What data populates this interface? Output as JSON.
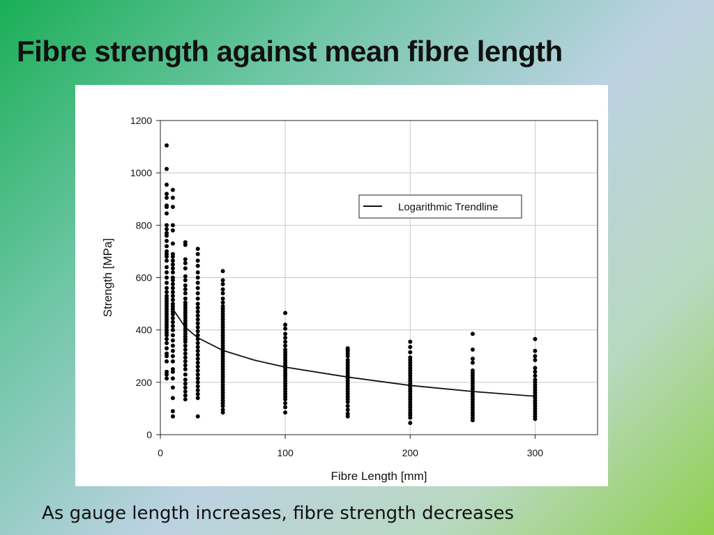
{
  "slide": {
    "title": "Fibre strength against mean fibre length",
    "caption": "As gauge length increases, fibre strength decreases"
  },
  "chart_data": {
    "type": "scatter",
    "xlabel": "Fibre Length [mm]",
    "ylabel": "Strength [MPa]",
    "xlim": [
      0,
      350
    ],
    "ylim": [
      0,
      1200
    ],
    "x_ticks": [
      0,
      100,
      200,
      300
    ],
    "y_ticks": [
      0,
      200,
      400,
      600,
      800,
      1000,
      1200
    ],
    "grid": true,
    "legend": {
      "placement": "upper-right",
      "entries": [
        "Logarithmic Trendline"
      ]
    },
    "trendline": {
      "type": "logarithmic",
      "x": [
        10,
        20,
        30,
        50,
        75,
        100,
        150,
        200,
        250,
        300
      ],
      "y": [
        480,
        410,
        370,
        322,
        285,
        258,
        220,
        188,
        165,
        147
      ]
    },
    "series": [
      {
        "x": 5,
        "values": [
          1105,
          1015,
          955,
          920,
          905,
          875,
          870,
          845,
          800,
          785,
          770,
          760,
          740,
          720,
          700,
          690,
          680,
          665,
          640,
          620,
          600,
          580,
          560,
          545,
          530,
          520,
          510,
          500,
          490,
          480,
          470,
          460,
          450,
          440,
          430,
          420,
          410,
          400,
          390,
          380,
          365,
          350,
          330,
          310,
          300,
          280,
          240,
          230,
          215
        ]
      },
      {
        "x": 10,
        "values": [
          935,
          905,
          870,
          800,
          780,
          730,
          690,
          680,
          665,
          650,
          635,
          620,
          600,
          590,
          575,
          560,
          545,
          530,
          515,
          500,
          490,
          480,
          470,
          460,
          445,
          430,
          415,
          400,
          380,
          360,
          340,
          320,
          300,
          280,
          250,
          240,
          215,
          180,
          140,
          90,
          70
        ]
      },
      {
        "x": 20,
        "values": [
          735,
          725,
          670,
          655,
          635,
          605,
          590,
          570,
          555,
          540,
          520,
          505,
          495,
          485,
          475,
          465,
          455,
          445,
          435,
          425,
          415,
          405,
          395,
          385,
          375,
          365,
          355,
          340,
          325,
          310,
          295,
          280,
          265,
          250,
          230,
          210,
          195,
          180,
          165,
          150,
          135
        ]
      },
      {
        "x": 30,
        "values": [
          710,
          690,
          665,
          645,
          620,
          600,
          580,
          560,
          540,
          520,
          500,
          485,
          470,
          455,
          440,
          425,
          410,
          395,
          380,
          365,
          350,
          335,
          320,
          305,
          290,
          275,
          260,
          245,
          230,
          215,
          200,
          185,
          170,
          155,
          140,
          70
        ]
      },
      {
        "x": 50,
        "values": [
          625,
          590,
          575,
          555,
          540,
          520,
          505,
          490,
          480,
          470,
          460,
          450,
          440,
          430,
          420,
          410,
          400,
          390,
          380,
          370,
          360,
          350,
          340,
          330,
          320,
          310,
          300,
          290,
          280,
          270,
          260,
          250,
          240,
          230,
          220,
          210,
          200,
          190,
          180,
          170,
          160,
          150,
          140,
          130,
          120,
          110,
          95,
          85
        ]
      },
      {
        "x": 100,
        "values": [
          465,
          420,
          405,
          385,
          370,
          355,
          340,
          325,
          315,
          305,
          295,
          285,
          275,
          265,
          255,
          245,
          235,
          225,
          215,
          205,
          195,
          185,
          175,
          165,
          155,
          145,
          135,
          120,
          105,
          85
        ]
      },
      {
        "x": 150,
        "values": [
          330,
          325,
          320,
          310,
          300,
          285,
          275,
          265,
          255,
          245,
          235,
          225,
          215,
          205,
          195,
          185,
          175,
          165,
          155,
          145,
          135,
          125,
          110,
          95,
          80,
          70
        ]
      },
      {
        "x": 200,
        "values": [
          355,
          335,
          315,
          295,
          285,
          275,
          265,
          255,
          245,
          235,
          225,
          215,
          205,
          195,
          185,
          175,
          165,
          155,
          145,
          135,
          125,
          115,
          105,
          95,
          85,
          75,
          65,
          45
        ]
      },
      {
        "x": 250,
        "values": [
          385,
          325,
          290,
          275,
          245,
          235,
          225,
          215,
          205,
          195,
          185,
          175,
          165,
          155,
          145,
          135,
          125,
          115,
          105,
          95,
          85,
          75,
          65,
          55
        ]
      },
      {
        "x": 300,
        "values": [
          365,
          320,
          300,
          285,
          255,
          240,
          225,
          210,
          200,
          190,
          180,
          170,
          160,
          150,
          140,
          130,
          120,
          110,
          100,
          90,
          80,
          70,
          60
        ]
      }
    ]
  }
}
